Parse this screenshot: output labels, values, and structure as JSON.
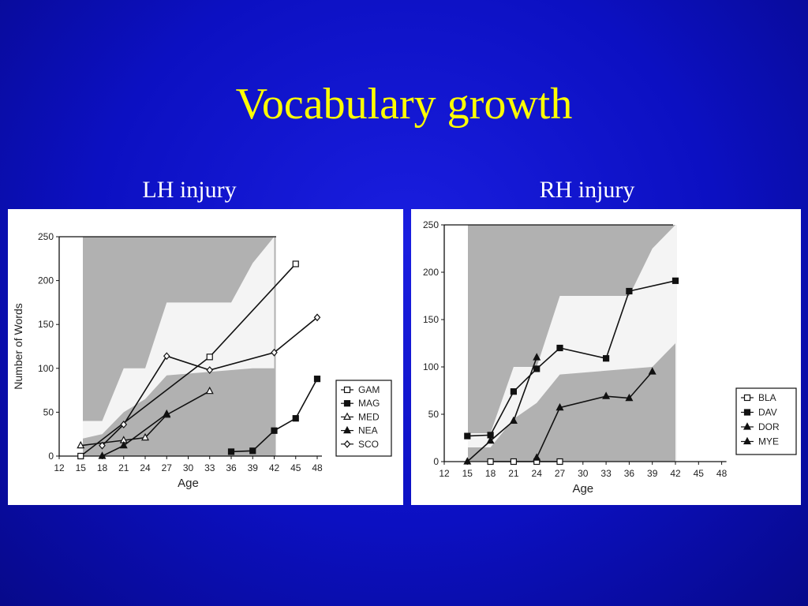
{
  "title": "Vocabulary growth",
  "colors": {
    "title": "#ffff00",
    "background": "#0c10c2",
    "subtitle": "#ffffff"
  },
  "chart_data": [
    {
      "type": "line",
      "title": "LH injury",
      "xlabel": "Age",
      "ylabel": "Number of Words",
      "xlim": [
        12,
        48
      ],
      "ylim": [
        0,
        250
      ],
      "x_ticks": [
        12,
        15,
        18,
        21,
        24,
        27,
        30,
        33,
        36,
        39,
        42,
        45,
        48
      ],
      "y_ticks": [
        0,
        50,
        100,
        150,
        200,
        250
      ],
      "legend_position": "right",
      "series": [
        {
          "name": "GAM",
          "marker": "open-square",
          "points": [
            [
              15,
              0
            ],
            [
              33,
              113
            ],
            [
              45,
              219
            ]
          ]
        },
        {
          "name": "MAG",
          "marker": "filled-square",
          "points": [
            [
              36,
              5
            ],
            [
              39,
              6
            ],
            [
              42,
              29
            ],
            [
              45,
              43
            ],
            [
              48,
              88
            ]
          ]
        },
        {
          "name": "MED",
          "marker": "open-triangle",
          "points": [
            [
              15,
              12
            ],
            [
              21,
              18
            ],
            [
              24,
              21
            ],
            [
              27,
              47
            ],
            [
              33,
              74
            ]
          ]
        },
        {
          "name": "NEA",
          "marker": "filled-triangle",
          "points": [
            [
              18,
              0
            ],
            [
              21,
              12
            ],
            [
              27,
              48
            ]
          ]
        },
        {
          "name": "SCO",
          "marker": "open-diamond",
          "points": [
            [
              18,
              12
            ],
            [
              21,
              36
            ],
            [
              27,
              114
            ],
            [
              33,
              98
            ],
            [
              42,
              118
            ],
            [
              48,
              158
            ]
          ]
        }
      ]
    },
    {
      "type": "line",
      "title": "RH injury",
      "xlabel": "Age",
      "ylabel": "",
      "xlim": [
        12,
        48
      ],
      "ylim": [
        0,
        250
      ],
      "x_ticks": [
        12,
        15,
        18,
        21,
        24,
        27,
        30,
        33,
        36,
        39,
        42,
        45,
        48
      ],
      "y_ticks": [
        0,
        50,
        100,
        150,
        200,
        250
      ],
      "legend_position": "right",
      "series": [
        {
          "name": "BLA",
          "marker": "open-square",
          "points": [
            [
              18,
              0
            ],
            [
              21,
              0
            ],
            [
              24,
              0
            ],
            [
              27,
              0
            ]
          ]
        },
        {
          "name": "DAV",
          "marker": "filled-square",
          "points": [
            [
              15,
              27
            ],
            [
              18,
              28
            ],
            [
              21,
              74
            ],
            [
              24,
              98
            ],
            [
              27,
              120
            ],
            [
              33,
              109
            ],
            [
              36,
              180
            ],
            [
              42,
              191
            ]
          ]
        },
        {
          "name": "DOR",
          "marker": "filled-triangle",
          "points": [
            [
              15,
              0
            ],
            [
              18,
              22
            ],
            [
              21,
              43
            ],
            [
              24,
              110
            ]
          ]
        },
        {
          "name": "MYE",
          "marker": "filled-triangle",
          "points": [
            [
              24,
              4
            ],
            [
              27,
              57
            ],
            [
              33,
              69
            ],
            [
              36,
              67
            ],
            [
              39,
              95
            ]
          ]
        }
      ]
    }
  ]
}
